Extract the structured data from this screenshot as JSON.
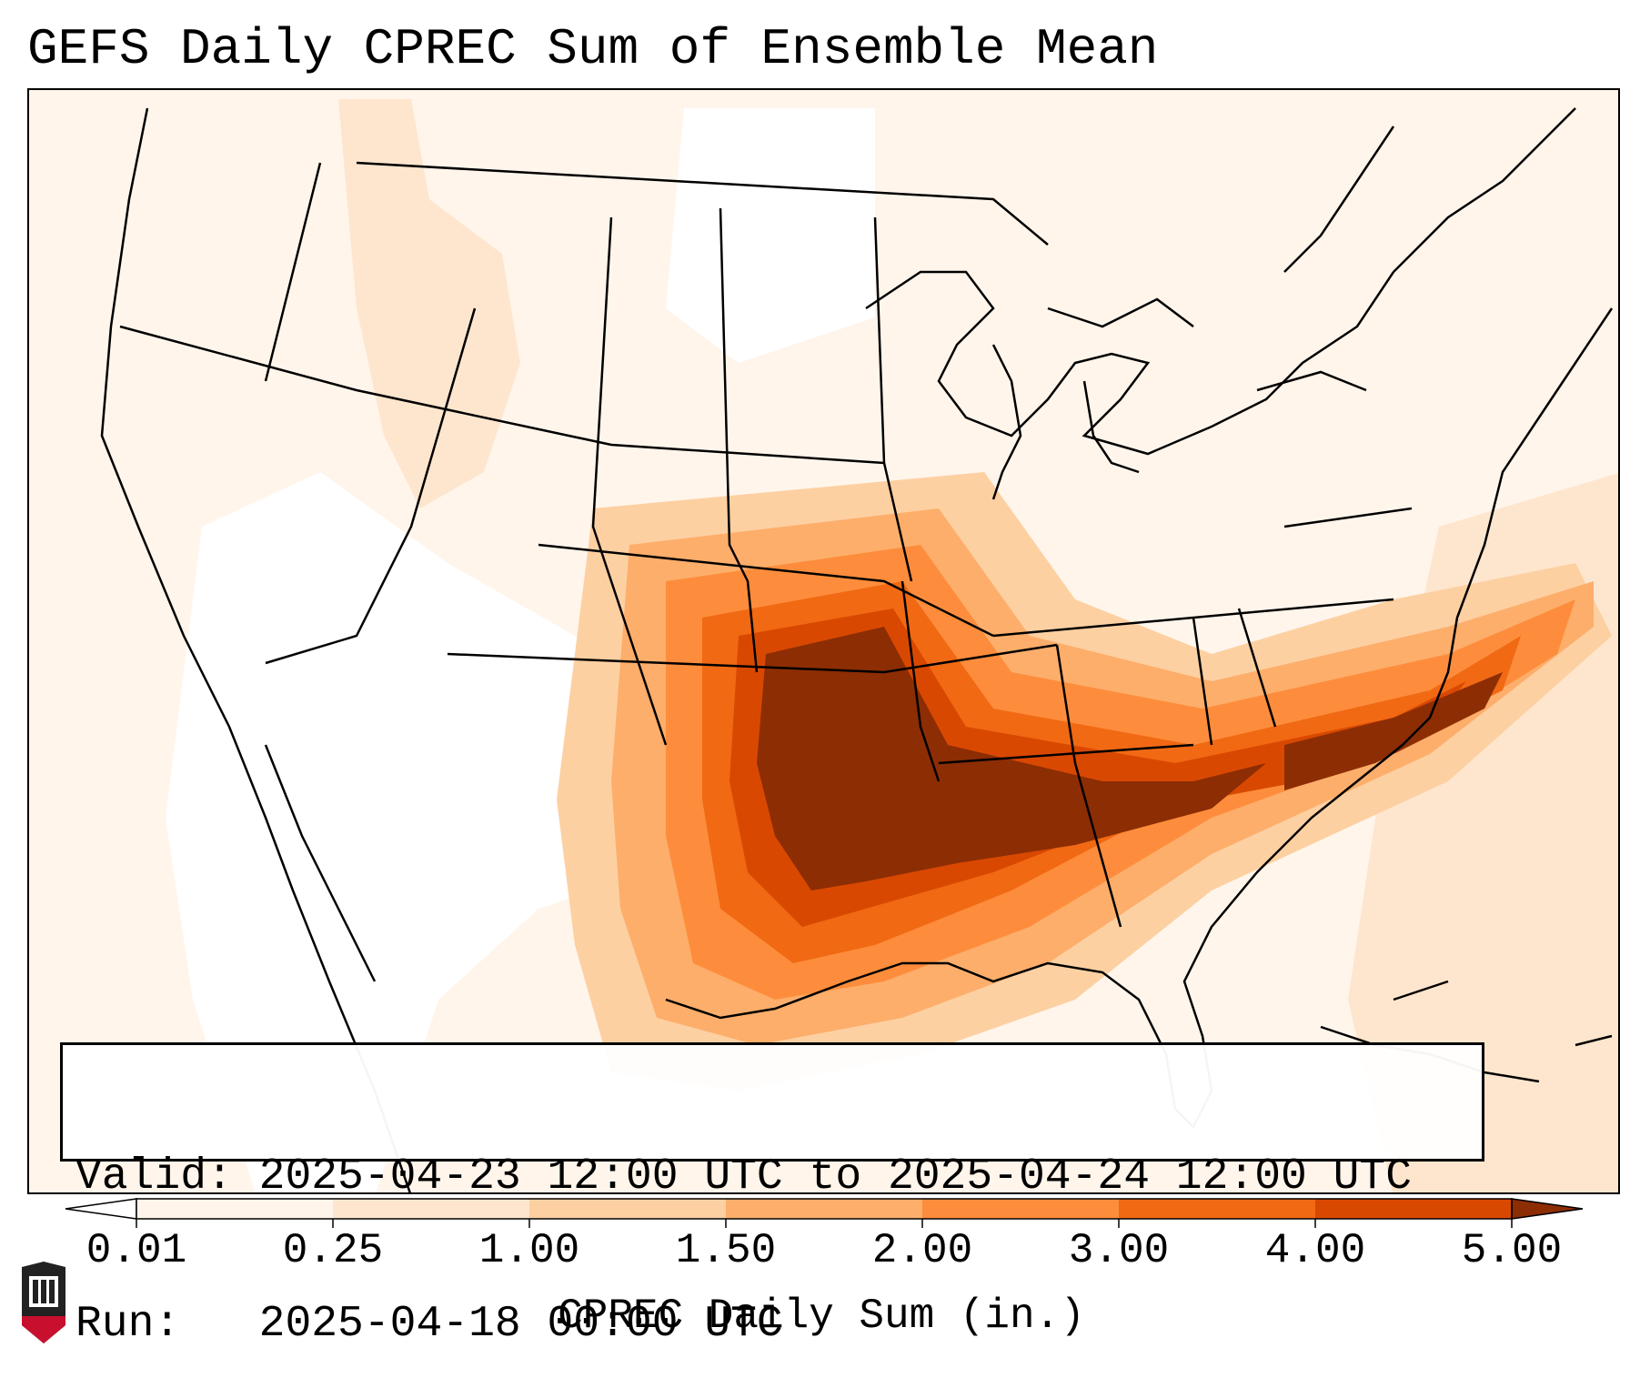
{
  "title": "GEFS Daily CPREC Sum of Ensemble Mean",
  "info": {
    "valid_line": "Valid: 2025-04-23 12:00 UTC to 2025-04-24 12:00 UTC",
    "run_line": "Run:   2025-04-18 00:00 UTC"
  },
  "colorbar": {
    "title": "CPREC Daily Sum (in.)",
    "ticks": [
      "0.01",
      "0.25",
      "1.00",
      "1.50",
      "2.00",
      "3.00",
      "4.00",
      "5.00"
    ],
    "colors": [
      "#fff5eb",
      "#fee6ce",
      "#fdd0a2",
      "#fdae6b",
      "#fd8d3c",
      "#f16913",
      "#d94801",
      "#8c2d04"
    ],
    "extend": "both"
  },
  "logo": {
    "text": "NIU",
    "color": "#c8102e"
  }
}
